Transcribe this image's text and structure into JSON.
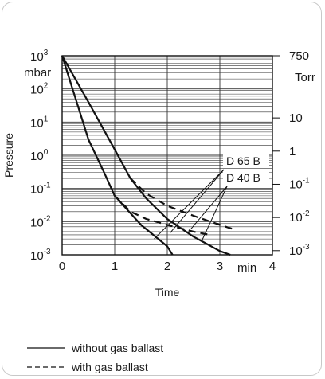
{
  "chart_data": {
    "type": "line",
    "title": "",
    "xlabel": "Time",
    "x_unit": "min",
    "ylabel": "Pressure",
    "y_unit_left": "mbar",
    "y_unit_right": "Torr",
    "x_range": [
      0,
      4
    ],
    "y_range": [
      0.001,
      1000
    ],
    "y_scale": "log",
    "grid": true,
    "x_ticks": [
      "0",
      "1",
      "2",
      "3",
      "4"
    ],
    "y_ticks_left": [
      {
        "base": "10",
        "exp": "3"
      },
      {
        "base": "10",
        "exp": "2"
      },
      {
        "base": "10",
        "exp": "1"
      },
      {
        "base": "10",
        "exp": "0"
      },
      {
        "base": "10",
        "exp": "-1"
      },
      {
        "base": "10",
        "exp": "-2"
      },
      {
        "base": "10",
        "exp": "-3"
      }
    ],
    "y_ticks_right": [
      {
        "base": "750",
        "exp": ""
      },
      {
        "base": "10",
        "exp": ""
      },
      {
        "base": "1",
        "exp": ""
      },
      {
        "base": "10",
        "exp": "-1"
      },
      {
        "base": "10",
        "exp": "-2"
      },
      {
        "base": "10",
        "exp": "-3"
      }
    ],
    "annotations": [
      "D 65 B",
      "D 40 B"
    ],
    "series": [
      {
        "pump": "D 65 B",
        "ballast": "without",
        "points": [
          [
            0,
            1000
          ],
          [
            0.5,
            3
          ],
          [
            0.8,
            0.3
          ],
          [
            1.0,
            0.06
          ],
          [
            1.5,
            0.008
          ],
          [
            2.0,
            0.0018
          ],
          [
            2.1,
            0.001
          ]
        ]
      },
      {
        "pump": "D 40 B",
        "ballast": "without",
        "points": [
          [
            0,
            1000
          ],
          [
            0.5,
            40
          ],
          [
            1.0,
            1.5
          ],
          [
            1.3,
            0.2
          ],
          [
            1.6,
            0.05
          ],
          [
            2.0,
            0.012
          ],
          [
            2.5,
            0.0035
          ],
          [
            3.0,
            0.0013
          ],
          [
            3.2,
            0.001
          ]
        ]
      },
      {
        "pump": "D 65 B",
        "ballast": "with",
        "points": [
          [
            1.0,
            0.06
          ],
          [
            1.3,
            0.02
          ],
          [
            1.6,
            0.012
          ],
          [
            2.0,
            0.008
          ],
          [
            2.5,
            0.005
          ],
          [
            2.8,
            0.004
          ]
        ]
      },
      {
        "pump": "D 40 B",
        "ballast": "with",
        "points": [
          [
            1.3,
            0.2
          ],
          [
            1.6,
            0.07
          ],
          [
            2.0,
            0.03
          ],
          [
            2.5,
            0.015
          ],
          [
            3.0,
            0.008
          ],
          [
            3.25,
            0.006
          ]
        ]
      }
    ]
  },
  "legend": {
    "solid": "without gas ballast",
    "dashed": "with gas ballast"
  }
}
